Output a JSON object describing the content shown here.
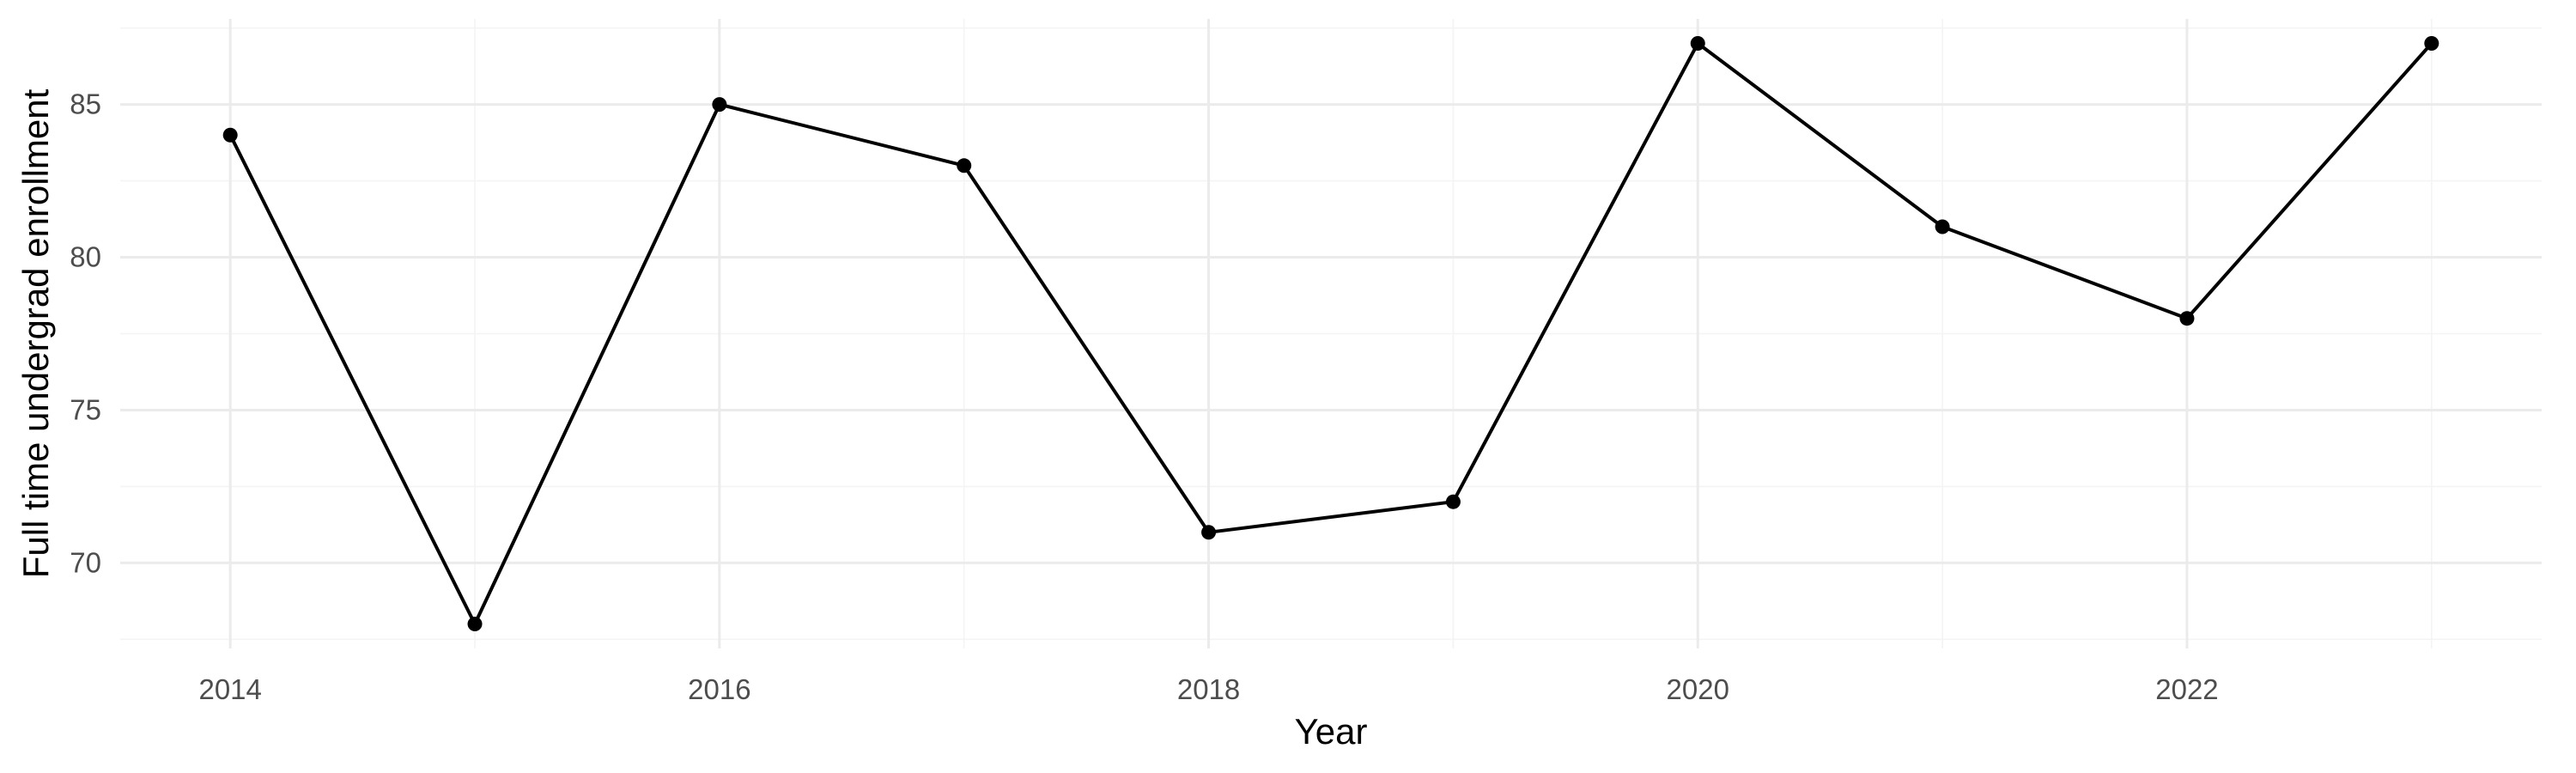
{
  "chart_data": {
    "type": "line",
    "title": "",
    "xlabel": "Year",
    "ylabel": "Full time undergrad enrollment",
    "x": [
      2014,
      2015,
      2016,
      2017,
      2018,
      2019,
      2020,
      2021,
      2022,
      2023
    ],
    "series": [
      {
        "values": [
          84,
          68,
          85,
          83,
          71,
          72,
          87,
          81,
          78,
          87
        ]
      }
    ],
    "xlim": [
      2013.55,
      2023.45
    ],
    "ylim": [
      67.2,
      87.8
    ],
    "x_ticks": [
      2014,
      2016,
      2018,
      2020,
      2022
    ],
    "x_minor_ticks": [
      2015,
      2017,
      2019,
      2021,
      2023
    ],
    "y_ticks": [
      70,
      75,
      80,
      85
    ],
    "y_minor_ticks": [
      67.5,
      72.5,
      77.5,
      82.5,
      87.5
    ],
    "grid": true,
    "legend": "none",
    "colors": {
      "line": "#000000",
      "point": "#000000",
      "grid_major": "#ebebeb",
      "grid_minor": "#f4f4f4",
      "tick_text": "#4d4d4d",
      "background": "#ffffff"
    }
  }
}
